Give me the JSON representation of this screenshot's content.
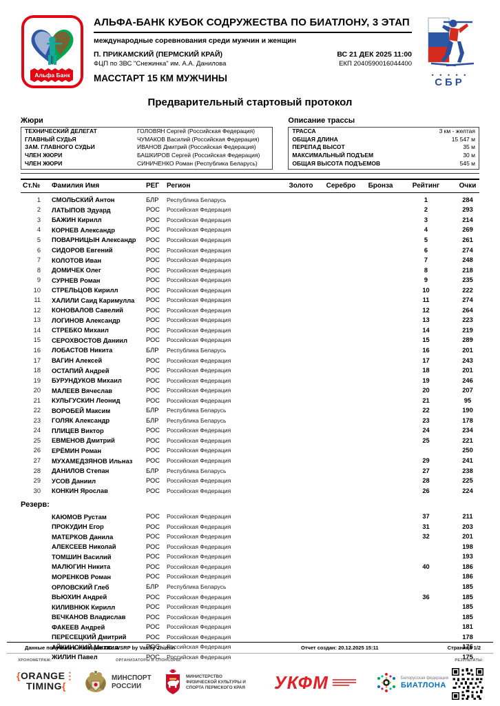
{
  "header": {
    "title": "АЛЬФА-БАНК КУБОК СОДРУЖЕСТВА ПО БИАТЛОНУ, 3 ЭТАП",
    "subtitle": "международные соревнования среди мужчин и женщин",
    "location": "П. ПРИКАМСКИЙ (ПЕРМСКИЙ КРАЙ)",
    "venue": "ФЦП по ЗВС \"Снежинка\" им. А.А. Данилова",
    "datetime": "ВС 21 ДЕК 2025 11:00",
    "ekp": "ЕКП 2040590016044400",
    "event": "МАССТАРТ 15 КМ МУЖЧИНЫ",
    "alfa_logo_text": "Альфа Банк",
    "sbr_logo_text": "СБР",
    "sbr_dots": "• • • • •"
  },
  "doc_title": "Предварительный стартовый протокол",
  "jury": {
    "title": "Жюри",
    "rows": [
      {
        "role": "ТЕХНИЧЕСКИЙ ДЕЛЕГАТ",
        "name": "ГОЛОВЯН Сергей (Российская Федерация)"
      },
      {
        "role": "ГЛАВНЫЙ СУДЬЯ",
        "name": "ЧУМАКОВ Василий (Российская Федерация)"
      },
      {
        "role": "ЗАМ. ГЛАВНОГО СУДЬИ",
        "name": "ИВАНОВ Дмитрий (Российская Федерация)"
      },
      {
        "role": "ЧЛЕН ЖЮРИ",
        "name": "БАШКИРОВ Сергей (Российская Федерация)"
      },
      {
        "role": "ЧЛЕН ЖЮРИ",
        "name": "СИНИЧЕНКО Роман (Республика Беларусь)"
      }
    ]
  },
  "course": {
    "title": "Описание трассы",
    "rows": [
      {
        "label": "ТРАССА",
        "value": "3 км - желтая"
      },
      {
        "label": "ОБЩАЯ ДЛИНА",
        "value": "15 547 м"
      },
      {
        "label": "ПЕРЕПАД ВЫСОТ",
        "value": "35 м"
      },
      {
        "label": "МАКСИМАЛЬНЫЙ ПОДЪЕМ",
        "value": "30 м"
      },
      {
        "label": "ОБЩАЯ ВЫСОТА ПОДЪЕМОВ",
        "value": "545 м"
      }
    ]
  },
  "table": {
    "headers": [
      "Ст.№",
      "Фамилия Имя",
      "РЕГ",
      "Регион",
      "Золото",
      "Серебро",
      "Бронза",
      "Рейтинг",
      "Очки"
    ],
    "rows": [
      [
        "1",
        "СМОЛЬСКИЙ Антон",
        "БЛР",
        "Республика Беларусь",
        "",
        "",
        "",
        "1",
        "284"
      ],
      [
        "2",
        "ЛАТЫПОВ Эдуард",
        "РОС",
        "Российская Федерация",
        "",
        "",
        "",
        "2",
        "293"
      ],
      [
        "3",
        "БАЖИН Кирилл",
        "РОС",
        "Российская Федерация",
        "",
        "",
        "",
        "3",
        "214"
      ],
      [
        "4",
        "КОРНЕВ Александр",
        "РОС",
        "Российская Федерация",
        "",
        "",
        "",
        "4",
        "269"
      ],
      [
        "5",
        "ПОВАРНИЦЫН Александр",
        "РОС",
        "Российская Федерация",
        "",
        "",
        "",
        "5",
        "261"
      ],
      [
        "6",
        "СИДОРОВ Евгений",
        "РОС",
        "Российская Федерация",
        "",
        "",
        "",
        "6",
        "274"
      ],
      [
        "7",
        "КОЛОТОВ Иван",
        "РОС",
        "Российская Федерация",
        "",
        "",
        "",
        "7",
        "248"
      ],
      [
        "8",
        "ДОМИЧЕК Олег",
        "РОС",
        "Российская Федерация",
        "",
        "",
        "",
        "8",
        "218"
      ],
      [
        "9",
        "СУРНЕВ Роман",
        "РОС",
        "Российская Федерация",
        "",
        "",
        "",
        "9",
        "235"
      ],
      [
        "10",
        "СТРЕЛЬЦОВ Кирилл",
        "РОС",
        "Российская Федерация",
        "",
        "",
        "",
        "10",
        "222"
      ],
      [
        "11",
        "ХАЛИЛИ Саид Каримулла",
        "РОС",
        "Российская Федерация",
        "",
        "",
        "",
        "11",
        "274"
      ],
      [
        "12",
        "КОНОВАЛОВ Савелий",
        "РОС",
        "Российская Федерация",
        "",
        "",
        "",
        "12",
        "264"
      ],
      [
        "13",
        "ЛОГИНОВ Александр",
        "РОС",
        "Российская Федерация",
        "",
        "",
        "",
        "13",
        "223"
      ],
      [
        "14",
        "СТРЕБКО Михаил",
        "РОС",
        "Российская Федерация",
        "",
        "",
        "",
        "14",
        "219"
      ],
      [
        "15",
        "СЕРОХВОСТОВ Даниил",
        "РОС",
        "Российская Федерация",
        "",
        "",
        "",
        "15",
        "289"
      ],
      [
        "16",
        "ЛОБАСТОВ Никита",
        "БЛР",
        "Республика Беларусь",
        "",
        "",
        "",
        "16",
        "201"
      ],
      [
        "17",
        "ВАГИН Алексей",
        "РОС",
        "Российская Федерация",
        "",
        "",
        "",
        "17",
        "243"
      ],
      [
        "18",
        "ОСТАПИЙ Андрей",
        "РОС",
        "Российская Федерация",
        "",
        "",
        "",
        "18",
        "201"
      ],
      [
        "19",
        "БУРУНДУКОВ Михаил",
        "РОС",
        "Российская Федерация",
        "",
        "",
        "",
        "19",
        "246"
      ],
      [
        "20",
        "МАЛЕЕВ Вячеслав",
        "РОС",
        "Российская Федерация",
        "",
        "",
        "",
        "20",
        "207"
      ],
      [
        "21",
        "КУЛЬГУСКИН Леонид",
        "РОС",
        "Российская Федерация",
        "",
        "",
        "",
        "21",
        "95"
      ],
      [
        "22",
        "ВОРОБЕЙ Максим",
        "БЛР",
        "Республика Беларусь",
        "",
        "",
        "",
        "22",
        "190"
      ],
      [
        "23",
        "ГОЛЯК Александр",
        "БЛР",
        "Республика Беларусь",
        "",
        "",
        "",
        "23",
        "178"
      ],
      [
        "24",
        "ПЛИЦЕВ Виктор",
        "РОС",
        "Российская Федерация",
        "",
        "",
        "",
        "24",
        "234"
      ],
      [
        "25",
        "ЕВМЕНОВ Дмитрий",
        "РОС",
        "Российская Федерация",
        "",
        "",
        "",
        "25",
        "221"
      ],
      [
        "26",
        "ЕРЁМИН Роман",
        "РОС",
        "Российская Федерация",
        "",
        "",
        "",
        "",
        "250"
      ],
      [
        "27",
        "МУХАМЕДЗЯНОВ Ильназ",
        "РОС",
        "Российская Федерация",
        "",
        "",
        "",
        "29",
        "241"
      ],
      [
        "28",
        "ДАНИЛОВ Степан",
        "БЛР",
        "Республика Беларусь",
        "",
        "",
        "",
        "27",
        "238"
      ],
      [
        "29",
        "УСОВ Даниил",
        "РОС",
        "Российская Федерация",
        "",
        "",
        "",
        "28",
        "225"
      ],
      [
        "30",
        "КОНКИН Ярослав",
        "РОС",
        "Российская Федерация",
        "",
        "",
        "",
        "26",
        "224"
      ]
    ]
  },
  "reserve": {
    "label": "Резерв:",
    "rows": [
      [
        "",
        "КАЮМОВ Рустам",
        "РОС",
        "Российская Федерация",
        "",
        "",
        "",
        "37",
        "211"
      ],
      [
        "",
        "ПРОКУДИН Егор",
        "РОС",
        "Российская Федерация",
        "",
        "",
        "",
        "31",
        "203"
      ],
      [
        "",
        "МАТЕРКОВ Данила",
        "РОС",
        "Российская Федерация",
        "",
        "",
        "",
        "32",
        "201"
      ],
      [
        "",
        "АЛЕКСЕЕВ Николай",
        "РОС",
        "Российская Федерация",
        "",
        "",
        "",
        "",
        "198"
      ],
      [
        "",
        "ТОМШИН Василий",
        "РОС",
        "Российская Федерация",
        "",
        "",
        "",
        "",
        "193"
      ],
      [
        "",
        "МАЛЮГИН Никита",
        "РОС",
        "Российская Федерация",
        "",
        "",
        "",
        "40",
        "186"
      ],
      [
        "",
        "МОРЕНКОВ Роман",
        "РОС",
        "Российская Федерация",
        "",
        "",
        "",
        "",
        "186"
      ],
      [
        "",
        "ОРЛОВСКИЙ Глеб",
        "БЛР",
        "Республика Беларусь",
        "",
        "",
        "",
        "",
        "185"
      ],
      [
        "",
        "ВЬЮХИН Андрей",
        "РОС",
        "Российская Федерация",
        "",
        "",
        "",
        "36",
        "185"
      ],
      [
        "",
        "КИЛИВНЮК Кирилл",
        "РОС",
        "Российская Федерация",
        "",
        "",
        "",
        "",
        "185"
      ],
      [
        "",
        "ВЕЧКАНОВ Владислав",
        "РОС",
        "Российская Федерация",
        "",
        "",
        "",
        "",
        "185"
      ],
      [
        "",
        "ФАКЕЕВ Андрей",
        "РОС",
        "Российская Федерация",
        "",
        "",
        "",
        "",
        "181"
      ],
      [
        "",
        "ПЕРЕСЕЦКИЙ Дмитрий",
        "РОС",
        "Российская Федерация",
        "",
        "",
        "",
        "",
        "178"
      ],
      [
        "",
        "АЙКИНСКИЙ Михаил",
        "РОС",
        "Российская Федерация",
        "",
        "",
        "",
        "",
        "176"
      ],
      [
        "",
        "ЖИЛИН Павел",
        "РОС",
        "Российская Федерация",
        "",
        "",
        "",
        "",
        "175"
      ]
    ]
  },
  "footer": {
    "software": "Данные получены с помощью ПО: WSRP by Vasiliy Zhizhin",
    "created": "Отчет создан: 20.12.2025 15:11",
    "page": "Страница 1/2"
  },
  "sponsors": {
    "timing_label": "ХРОНОМЕТРАЖ:",
    "organizers_label": "ОРГАНИЗАТОРЫ И СПОНСОРЫ:",
    "results_label": "РЕЗУЛЬТАТЫ:",
    "orange_timing_line1": "ORANGE",
    "orange_timing_line2": "TIMING",
    "minsport_line1": "МИНСПОРТ",
    "minsport_line2": "РОССИИ",
    "perm_line1": "МИНИСТЕРСТВО",
    "perm_line2": "ФИЗИЧЕСКОЙ КУЛЬТУРЫ И",
    "perm_line3": "СПОРТА ПЕРМСКОГО КРАЯ",
    "ukfm_text": "УКФМ",
    "belarus_line1": "Белорусская федерация",
    "belarus_line2": "БИАТЛОНА"
  },
  "colors": {
    "alfa_red": "#e20613",
    "sbr_blue": "#2b4f9e",
    "flag_blue": "#2c57a5",
    "flag_red": "#d52b1e",
    "belarus_green": "#00a651",
    "orange_timing": "#f15a22",
    "perm_red": "#c8102e",
    "ukfm_red": "#e31e24",
    "belarus_fed_blue": "#0072bc"
  }
}
